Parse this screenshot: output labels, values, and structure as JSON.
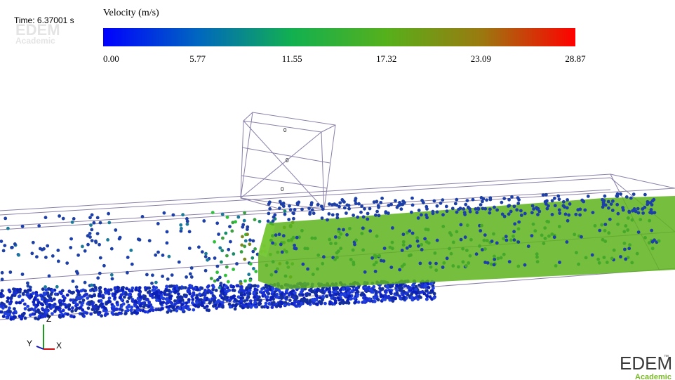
{
  "time_label": "Time: 6.37001 s",
  "watermark": {
    "name": "EDEM",
    "edition": "Academic"
  },
  "colorbar": {
    "title": "Velocity (m/s)",
    "ticks": [
      "0.00",
      "5.77",
      "11.55",
      "17.32",
      "23.09",
      "28.87"
    ]
  },
  "box_labels": [
    "0",
    "0",
    "0"
  ],
  "axes": {
    "z": "Z",
    "y": "Y",
    "x": "X"
  },
  "logo": {
    "name": "EDEM",
    "trademark": "™",
    "edition": "Academic"
  }
}
